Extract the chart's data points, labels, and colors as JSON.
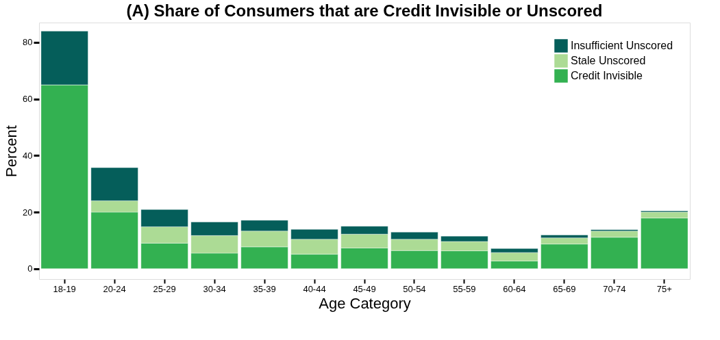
{
  "chart_data": {
    "type": "bar",
    "title": "(A) Share of Consumers that are Credit Invisible or Unscored",
    "xlabel": "Age Category",
    "ylabel": "Percent",
    "categories": [
      "18-19",
      "20-24",
      "25-29",
      "30-34",
      "35-39",
      "40-44",
      "45-49",
      "50-54",
      "55-59",
      "60-64",
      "65-69",
      "70-74",
      "75+"
    ],
    "stacked": true,
    "series": [
      {
        "name": "Credit Invisible",
        "color": "#33b151",
        "values": [
          65,
          20,
          9,
          5.5,
          7.7,
          5.1,
          7.3,
          6.4,
          6.3,
          2.7,
          8.7,
          11.1,
          17.9
        ]
      },
      {
        "name": "Stale Unscored",
        "color": "#acdb95",
        "values": [
          0,
          4,
          5.8,
          6.2,
          5.6,
          5.3,
          4.9,
          4,
          3.3,
          3,
          2.2,
          2.2,
          2.1
        ]
      },
      {
        "name": "Insufficient Unscored",
        "color": "#055e5a",
        "values": [
          19,
          11.7,
          6.1,
          4.8,
          3.8,
          3.5,
          2.8,
          2.5,
          1.9,
          1.4,
          1,
          0.5,
          0.4
        ]
      }
    ],
    "ylim": [
      -3.7,
      87
    ],
    "yticks": [
      0,
      20,
      40,
      60,
      80
    ],
    "grid": false,
    "legend": "top right"
  }
}
